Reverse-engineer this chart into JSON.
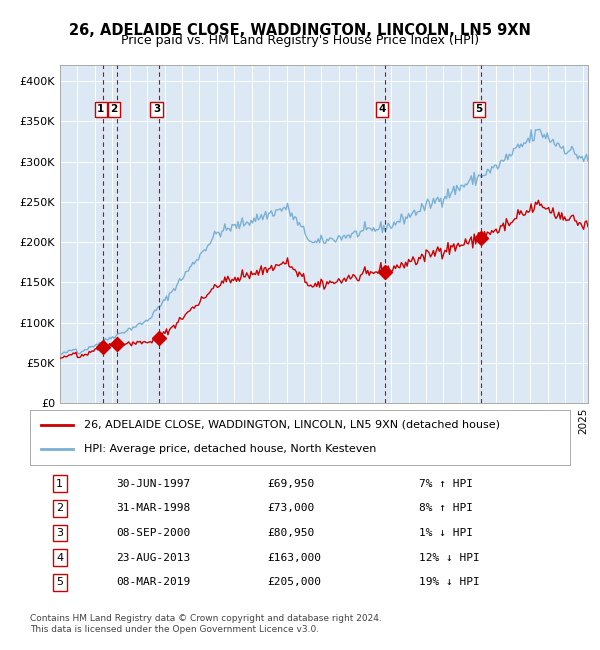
{
  "title": "26, ADELAIDE CLOSE, WADDINGTON, LINCOLN, LN5 9XN",
  "subtitle": "Price paid vs. HM Land Registry's House Price Index (HPI)",
  "title_fontsize": 11,
  "subtitle_fontsize": 9.5,
  "background_color": "#dce9f5",
  "plot_bg_color": "#dce9f5",
  "hpi_color": "#7ab0d4",
  "price_color": "#cc0000",
  "sale_marker_color": "#cc0000",
  "dashed_line_color": "#cc0000",
  "ylim": [
    0,
    420000
  ],
  "xlim_start": 1995.0,
  "xlim_end": 2025.3,
  "yticks": [
    0,
    50000,
    100000,
    150000,
    200000,
    250000,
    300000,
    350000,
    400000
  ],
  "ytick_labels": [
    "£0",
    "£50K",
    "£100K",
    "£150K",
    "£200K",
    "£250K",
    "£300K",
    "£350K",
    "£400K"
  ],
  "sales": [
    {
      "num": 1,
      "date": "30-JUN-1997",
      "price": 69950,
      "year": 1997.49,
      "pct": "7%",
      "dir": "↑"
    },
    {
      "num": 2,
      "date": "31-MAR-1998",
      "price": 73000,
      "year": 1998.25,
      "pct": "8%",
      "dir": "↑"
    },
    {
      "num": 3,
      "date": "08-SEP-2000",
      "price": 80950,
      "year": 2000.69,
      "pct": "1%",
      "dir": "↓"
    },
    {
      "num": 4,
      "date": "23-AUG-2013",
      "price": 163000,
      "year": 2013.64,
      "pct": "12%",
      "dir": "↓"
    },
    {
      "num": 5,
      "date": "08-MAR-2019",
      "price": 205000,
      "year": 2019.18,
      "pct": "19%",
      "dir": "↓"
    }
  ],
  "legend_property_label": "26, ADELAIDE CLOSE, WADDINGTON, LINCOLN, LN5 9XN (detached house)",
  "legend_hpi_label": "HPI: Average price, detached house, North Kesteven",
  "footer": "Contains HM Land Registry data © Crown copyright and database right 2024.\nThis data is licensed under the Open Government Licence v3.0.",
  "table_rows": [
    [
      "1",
      "30-JUN-1997",
      "£69,950",
      "7% ↑ HPI"
    ],
    [
      "2",
      "31-MAR-1998",
      "£73,000",
      "8% ↑ HPI"
    ],
    [
      "3",
      "08-SEP-2000",
      "£80,950",
      "1% ↓ HPI"
    ],
    [
      "4",
      "23-AUG-2013",
      "£163,000",
      "12% ↓ HPI"
    ],
    [
      "5",
      "08-MAR-2019",
      "£205,000",
      "19% ↓ HPI"
    ]
  ]
}
